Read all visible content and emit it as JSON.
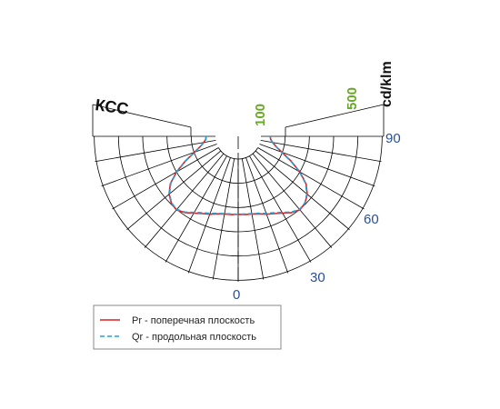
{
  "chart_data": {
    "type": "polar",
    "title": "КСС",
    "unit": "cd/klm",
    "radial_ticks": [
      "100",
      "500"
    ],
    "angle_ticks": [
      "0",
      "30",
      "60",
      "90"
    ],
    "rlim": [
      0,
      500
    ],
    "angle_range_deg": [
      -90,
      90
    ],
    "grid": true,
    "legend_position": "bottom-left",
    "colors": {
      "pr": "#e02020",
      "qr": "#2a9fd6",
      "angle_labels": "#2a4f9a",
      "radial_labels": "#6aa829",
      "grid": "#000000"
    },
    "series": [
      {
        "name": "Pr - поперечная плоскость",
        "style": "solid",
        "color": "#e02020",
        "angles": [
          0,
          5,
          10,
          15,
          20,
          25,
          30,
          35,
          40,
          45,
          50,
          55,
          60,
          65,
          70,
          75,
          80,
          85,
          90
        ],
        "values": [
          268,
          270,
          271,
          276,
          285,
          293,
          305,
          320,
          330,
          325,
          310,
          285,
          245,
          200,
          160,
          135,
          120,
          112,
          110
        ]
      },
      {
        "name": "Qr - продольная плоскость",
        "style": "dashed",
        "color": "#2a9fd6",
        "angles": [
          0,
          5,
          10,
          15,
          20,
          25,
          30,
          35,
          40,
          45,
          50,
          55,
          60,
          65,
          70,
          75,
          80,
          85,
          90
        ],
        "values": [
          268,
          268,
          270,
          274,
          282,
          290,
          302,
          318,
          328,
          324,
          308,
          283,
          243,
          198,
          158,
          134,
          119,
          111,
          110
        ]
      }
    ]
  }
}
